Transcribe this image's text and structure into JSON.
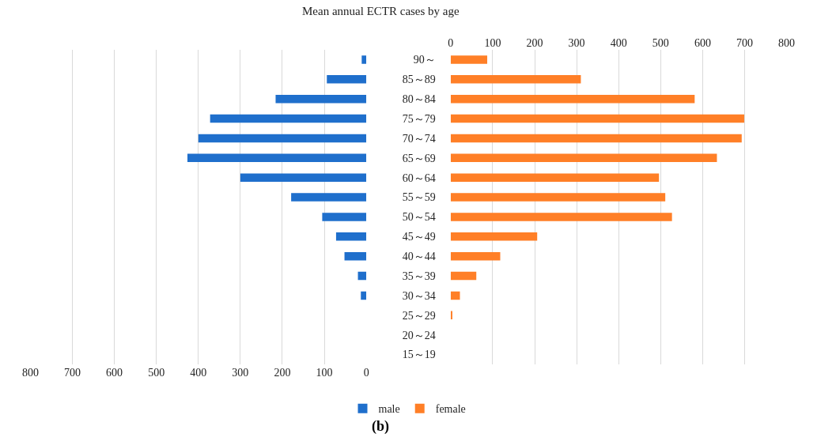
{
  "chart_data": [
    {
      "type": "bar",
      "orientation": "horizontal",
      "title": "Mean annual ECTR cases by age",
      "series": [
        {
          "name": "male",
          "color": "#1f6fcc",
          "values": [
            11,
            94,
            216,
            372,
            400,
            426,
            300,
            179,
            105,
            72,
            52,
            20,
            13,
            0,
            0,
            0
          ]
        }
      ],
      "xlim": [
        800,
        0
      ],
      "xticks": [
        800,
        700,
        600,
        500,
        400,
        300,
        200,
        100,
        0
      ],
      "grid": "x",
      "legend": "bottom",
      "tick_labels": "x",
      "annotations": [
        "(b)"
      ]
    },
    {
      "type": "bar",
      "orientation": "horizontal",
      "categories": [
        "90～",
        "85～89",
        "80～84",
        "75～79",
        "70～74",
        "65～69",
        "60～64",
        "55～59",
        "50～54",
        "45～49",
        "40～44",
        "35～39",
        "30～34",
        "25～29",
        "20～24",
        "15～19"
      ],
      "series": [
        {
          "name": "female",
          "color": "#ff7f27",
          "values": [
            87,
            310,
            581,
            699,
            693,
            634,
            496,
            511,
            527,
            206,
            118,
            61,
            22,
            4,
            0,
            0
          ]
        }
      ],
      "xlim": [
        0,
        800
      ],
      "xticks": [
        0,
        100,
        200,
        300,
        400,
        500,
        600,
        700,
        800
      ],
      "grid": "x",
      "legend": "bottom"
    }
  ]
}
